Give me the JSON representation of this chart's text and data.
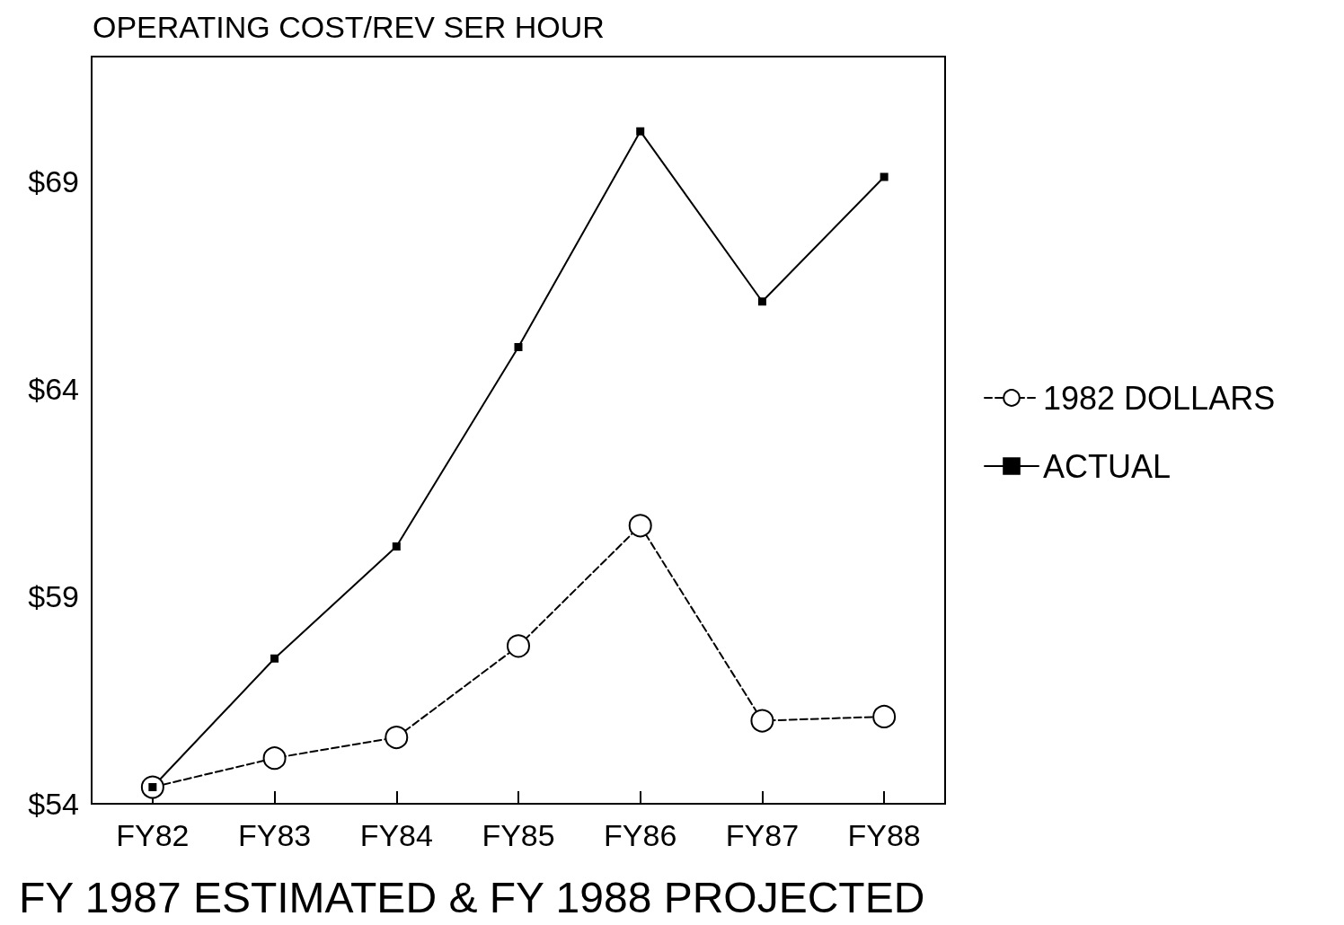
{
  "chart_data": {
    "type": "line",
    "title": "OPERATING COST/REV SER HOUR",
    "xlabel": "FY 1987 ESTIMATED & FY 1988 PROJECTED",
    "categories": [
      "FY82",
      "FY83",
      "FY84",
      "FY85",
      "FY86",
      "FY87",
      "FY88"
    ],
    "series": [
      {
        "name": "1982 DOLLARS",
        "color": "#000000",
        "marker": "circle",
        "line_style": "dashed",
        "values": [
          54.4,
          55.1,
          55.6,
          57.8,
          60.7,
          56.0,
          56.1
        ]
      },
      {
        "name": "ACTUAL",
        "color": "#000000",
        "marker": "square",
        "line_style": "solid",
        "values": [
          54.4,
          57.5,
          60.2,
          65.0,
          70.2,
          66.1,
          69.1
        ]
      }
    ],
    "ylim": [
      54,
      72
    ],
    "yticks": [
      {
        "value": 54,
        "label": "$54"
      },
      {
        "value": 59,
        "label": "$59"
      },
      {
        "value": 64,
        "label": "$64"
      },
      {
        "value": 69,
        "label": "$69"
      }
    ],
    "grid": false,
    "legend": "right"
  }
}
